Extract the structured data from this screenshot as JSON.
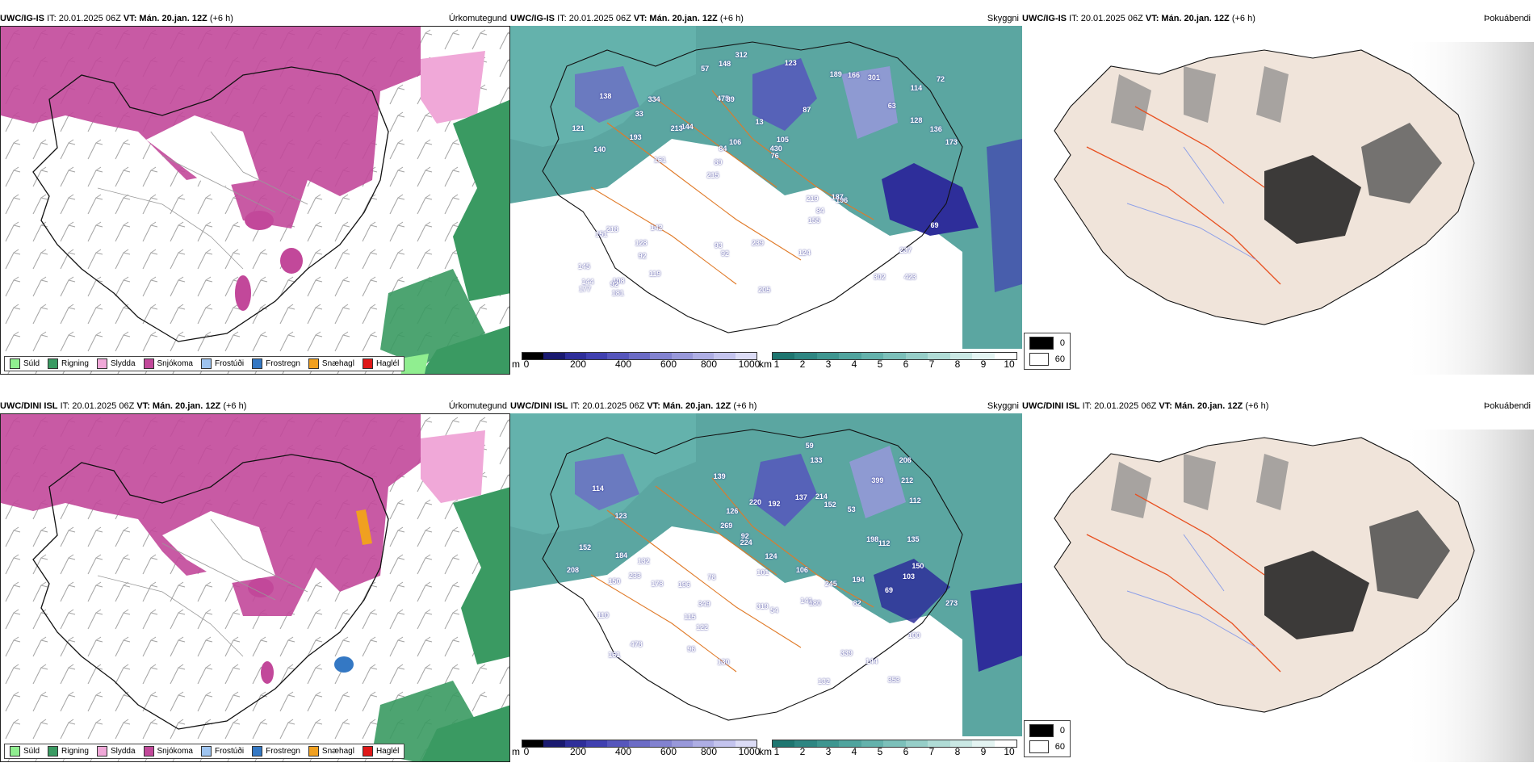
{
  "rows": [
    {
      "model": "UWC/IG-IS",
      "it": "IT: 20.01.2025 06Z",
      "vt": "VT: Mán. 20.jan. 12Z",
      "lead": "(+6 h)",
      "stations": [
        "423",
        "140",
        "114",
        "215",
        "87",
        "108",
        "475",
        "13",
        "218",
        "144",
        "145",
        "92",
        "89",
        "105",
        "196",
        "138",
        "148",
        "173",
        "219",
        "128",
        "89",
        "93",
        "84",
        "334",
        "189",
        "142",
        "302",
        "237",
        "187",
        "205",
        "213",
        "193",
        "155",
        "119",
        "136",
        "430",
        "144",
        "92",
        "76",
        "151",
        "63",
        "72",
        "84",
        "124",
        "128",
        "181",
        "177",
        "239",
        "301",
        "312",
        "161",
        "121",
        "33",
        "166",
        "92",
        "123",
        "57",
        "106",
        "69"
      ]
    },
    {
      "model": "UWC/DINI ISL",
      "it": "IT: 20.01.2025 06Z",
      "vt": "VT: Mán. 20.jan. 12Z",
      "lead": "(+6 h)",
      "stations": [
        "353",
        "233",
        "141",
        "114",
        "100",
        "123",
        "478",
        "196",
        "53",
        "220",
        "152",
        "144",
        "122",
        "139",
        "106",
        "110",
        "194",
        "124",
        "152",
        "161",
        "206",
        "192",
        "198",
        "273",
        "150",
        "184",
        "178",
        "101",
        "224",
        "212",
        "180",
        "150",
        "115",
        "214",
        "126",
        "69",
        "103",
        "339",
        "399",
        "132",
        "349",
        "54",
        "96",
        "59",
        "78",
        "132",
        "112",
        "133",
        "137",
        "319",
        "245",
        "135",
        "82",
        "112",
        "269",
        "208",
        "130",
        "92"
      ]
    }
  ],
  "panels": {
    "precip": {
      "title": "Úrkomutegund",
      "legend": [
        {
          "label": "Súld",
          "color": "#90ee90"
        },
        {
          "label": "Rigning",
          "color": "#3a9a62"
        },
        {
          "label": "Slydda",
          "color": "#f0a8d8"
        },
        {
          "label": "Snjókoma",
          "color": "#c2489a"
        },
        {
          "label": "Frostúði",
          "color": "#9ec4f0"
        },
        {
          "label": "Frostregn",
          "color": "#3478c4"
        },
        {
          "label": "Snæhagl",
          "color": "#f0a020"
        },
        {
          "label": "Haglél",
          "color": "#e01818"
        }
      ]
    },
    "visibility": {
      "title": "Skyggni",
      "cbar_m": {
        "unit": "m",
        "ticks": [
          "0",
          "200",
          "400",
          "600",
          "800",
          "1000"
        ],
        "colors": [
          "#000000",
          "#1a1a70",
          "#2e2e9a",
          "#4040b0",
          "#5656bc",
          "#6c6cc6",
          "#8282d0",
          "#9898da",
          "#aeaee4",
          "#c4c4ee",
          "#dcdcf6"
        ]
      },
      "cbar_km": {
        "unit": "km",
        "ticks": [
          "1",
          "2",
          "3",
          "4",
          "5",
          "6",
          "7",
          "8",
          "9",
          "10"
        ],
        "colors": [
          "#1e7670",
          "#2e8682",
          "#3e9690",
          "#50a49e",
          "#64b2ac",
          "#7cc0ba",
          "#96cec8",
          "#b0dcd6",
          "#cae8e4",
          "#e4f4f2",
          "#ffffff"
        ]
      }
    },
    "fog": {
      "title": "Þokuábendi",
      "key": [
        {
          "label": "0",
          "color": "#000000"
        },
        {
          "label": "60",
          "color": "#ffffff"
        }
      ]
    }
  }
}
